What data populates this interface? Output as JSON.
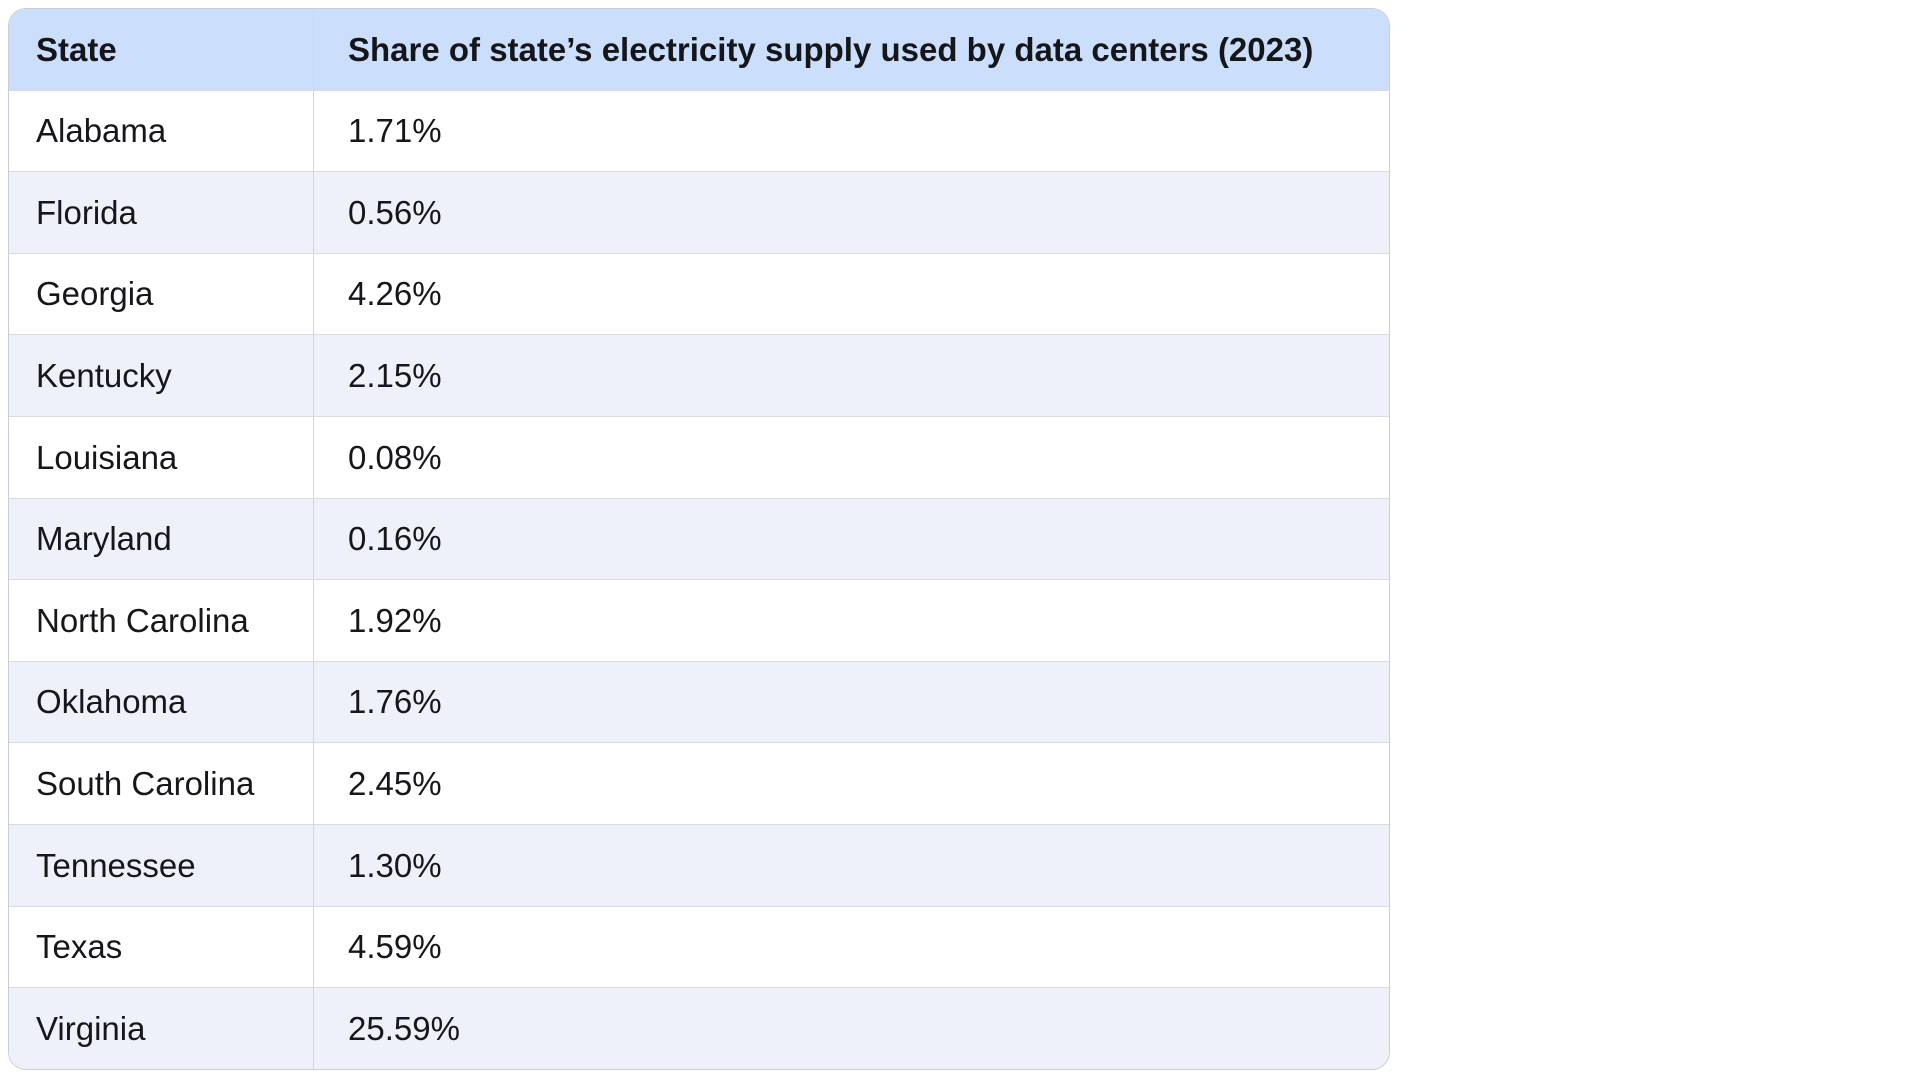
{
  "table": {
    "columns": [
      "State",
      "Share of state’s electricity supply used by data centers (2023)"
    ],
    "rows": [
      {
        "state": "Alabama",
        "share": "1.71%"
      },
      {
        "state": "Florida",
        "share": "0.56%"
      },
      {
        "state": "Georgia",
        "share": "4.26%"
      },
      {
        "state": "Kentucky",
        "share": "2.15%"
      },
      {
        "state": "Louisiana",
        "share": "0.08%"
      },
      {
        "state": "Maryland",
        "share": "0.16%"
      },
      {
        "state": "North Carolina",
        "share": "1.92%"
      },
      {
        "state": "Oklahoma",
        "share": "1.76%"
      },
      {
        "state": "South Carolina",
        "share": "2.45%"
      },
      {
        "state": "Tennessee",
        "share": "1.30%"
      },
      {
        "state": "Texas",
        "share": "4.59%"
      },
      {
        "state": "Virginia",
        "share": "25.59%"
      }
    ]
  },
  "colors": {
    "header_bg": "#cbdefb",
    "row_bg": "#ffffff",
    "row_alt_bg": "#eef1f9",
    "outer_border": "#c9cdd8",
    "inner_border": "#d9dce4",
    "text": "#16171b"
  },
  "chart_data": {
    "type": "table",
    "title": "Share of state’s electricity supply used by data centers (2023)",
    "columns": [
      "State",
      "Share of state’s electricity supply used by data centers (2023)"
    ],
    "categories": [
      "Alabama",
      "Florida",
      "Georgia",
      "Kentucky",
      "Louisiana",
      "Maryland",
      "North Carolina",
      "Oklahoma",
      "South Carolina",
      "Tennessee",
      "Texas",
      "Virginia"
    ],
    "values": [
      1.71,
      0.56,
      4.26,
      2.15,
      0.08,
      0.16,
      1.92,
      1.76,
      2.45,
      1.3,
      4.59,
      25.59
    ],
    "unit": "%"
  }
}
